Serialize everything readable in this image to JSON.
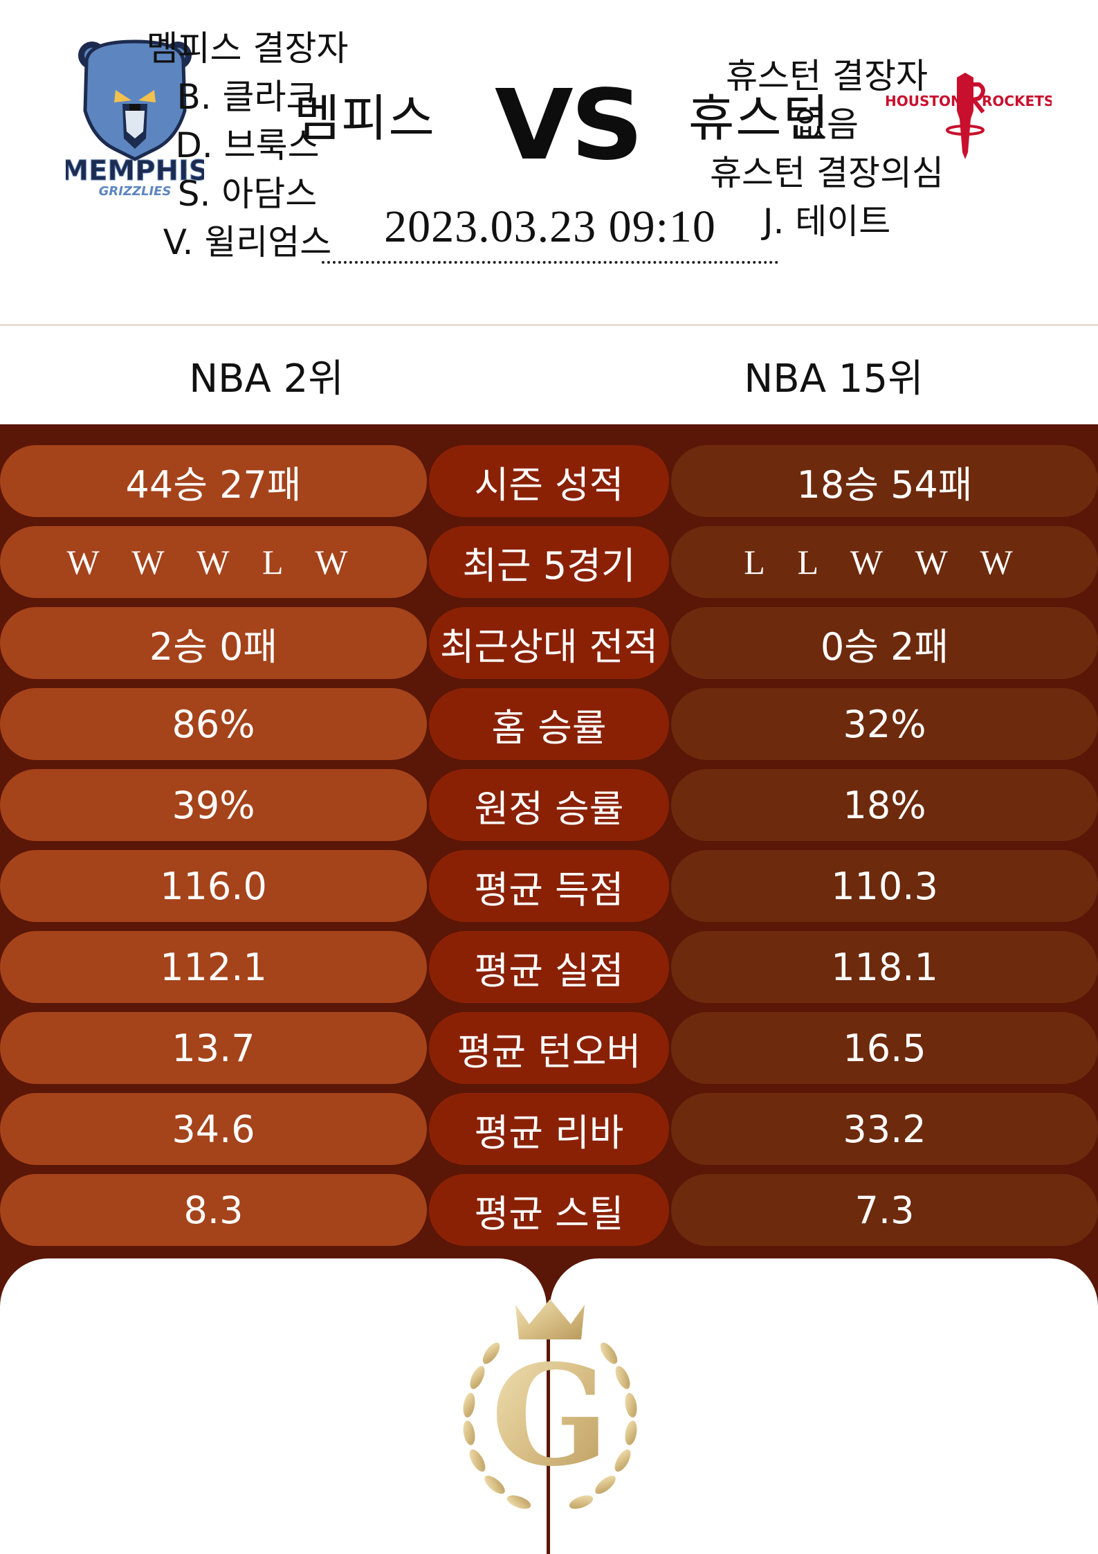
{
  "match": {
    "home_team": "멤피스",
    "away_team": "휴스턴",
    "vs": "VS",
    "datetime": "2023.03.23  09:10",
    "home_logo": {
      "icon": "memphis-grizzlies-logo",
      "text_top": "MEMPHIS",
      "text_bottom": "GRIZZLIES"
    },
    "away_logo": {
      "icon": "houston-rockets-logo",
      "text_left": "HOUSTON",
      "text_right": "ROCKETS"
    }
  },
  "ranks": {
    "home": "NBA 2위",
    "away": "NBA 15위"
  },
  "stats": [
    {
      "label": "시즌 성적",
      "home": "44승 27패",
      "away": "18승 54패"
    },
    {
      "label": "최근 5경기",
      "home": "W W W L W",
      "away": "L L W W W"
    },
    {
      "label": "최근상대 전적",
      "home": "2승 0패",
      "away": "0승 2패"
    },
    {
      "label": "홈 승률",
      "home": "86%",
      "away": "32%"
    },
    {
      "label": "원정 승률",
      "home": "39%",
      "away": "18%"
    },
    {
      "label": "평균 득점",
      "home": "116.0",
      "away": "110.3"
    },
    {
      "label": "평균 실점",
      "home": "112.1",
      "away": "118.1"
    },
    {
      "label": "평균 턴오버",
      "home": "13.7",
      "away": "16.5"
    },
    {
      "label": "평균 리바",
      "home": "34.6",
      "away": "33.2"
    },
    {
      "label": "평균 스틸",
      "home": "8.3",
      "away": "7.3"
    }
  ],
  "absences": {
    "home": [
      "멤피스 결장자",
      "B. 클라크",
      "D. 브룩스",
      "S. 아담스",
      "V. 윌리엄스"
    ],
    "away": [
      "휴스턴 결장자",
      "없음",
      "휴스턴 결장의심",
      "J. 테이트"
    ]
  },
  "emblem": {
    "icon": "gold-laurel-crown-emblem",
    "letter": "G"
  },
  "colors": {
    "background_dark": "#5a1606",
    "home_pill": "#a5431b",
    "label_pill": "#8a2105",
    "away_pill": "#6d2a0d",
    "gold": "#d8bf86",
    "grizzlies_blue": "#2e5a8c",
    "rockets_red": "#c8102e"
  }
}
